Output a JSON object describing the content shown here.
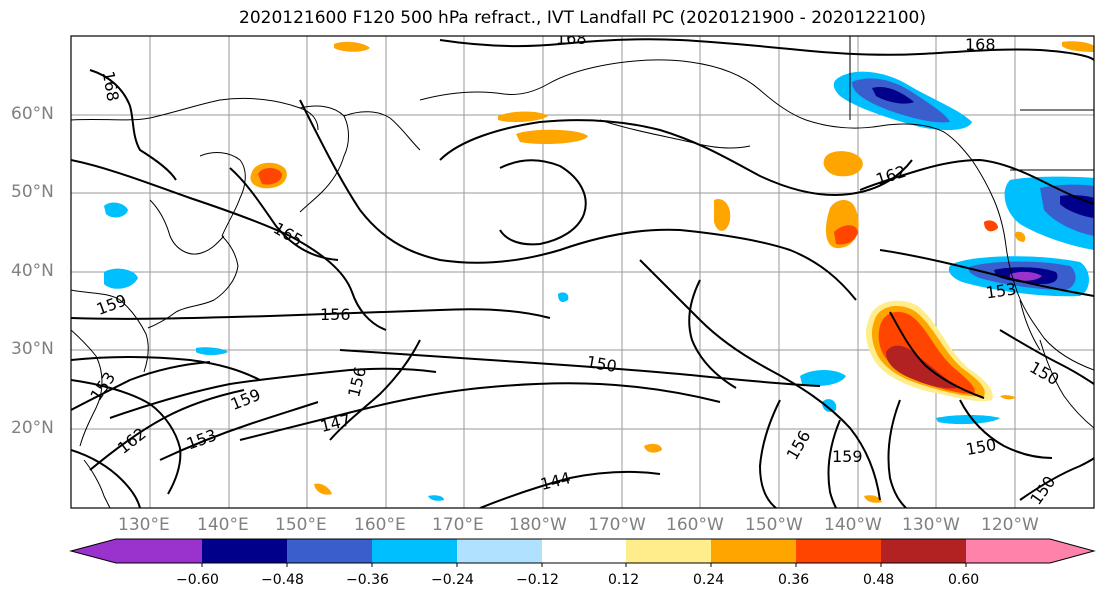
{
  "title": "2020121600 F120 500 hPa refract., IVT Landfall PC (2020121900 - 2020122100)",
  "map": {
    "lat_labels": [
      "60°N",
      "50°N",
      "40°N",
      "30°N",
      "20°N"
    ],
    "lon_labels": [
      "130°E",
      "140°E",
      "150°E",
      "160°E",
      "170°E",
      "180°W",
      "170°W",
      "160°W",
      "150°W",
      "140°W",
      "130°W",
      "120°W"
    ],
    "contour_labels": [
      "168",
      "168",
      "168",
      "162",
      "165",
      "159",
      "156",
      "156",
      "159",
      "153",
      "162",
      "153",
      "147",
      "150",
      "156",
      "159",
      "144",
      "153",
      "150",
      "150",
      "150"
    ]
  },
  "colorbar": {
    "colors": [
      "#9a32cd",
      "#00008b",
      "#3a5fcd",
      "#00bfff",
      "#b0e2ff",
      "#ffffff",
      "#ffec8b",
      "#ffa500",
      "#ff4500",
      "#b22222",
      "#ff82ab"
    ],
    "ticks": [
      "−0.60",
      "−0.48",
      "−0.36",
      "−0.24",
      "−0.12",
      "0.12",
      "0.24",
      "0.36",
      "0.48",
      "0.60"
    ]
  }
}
